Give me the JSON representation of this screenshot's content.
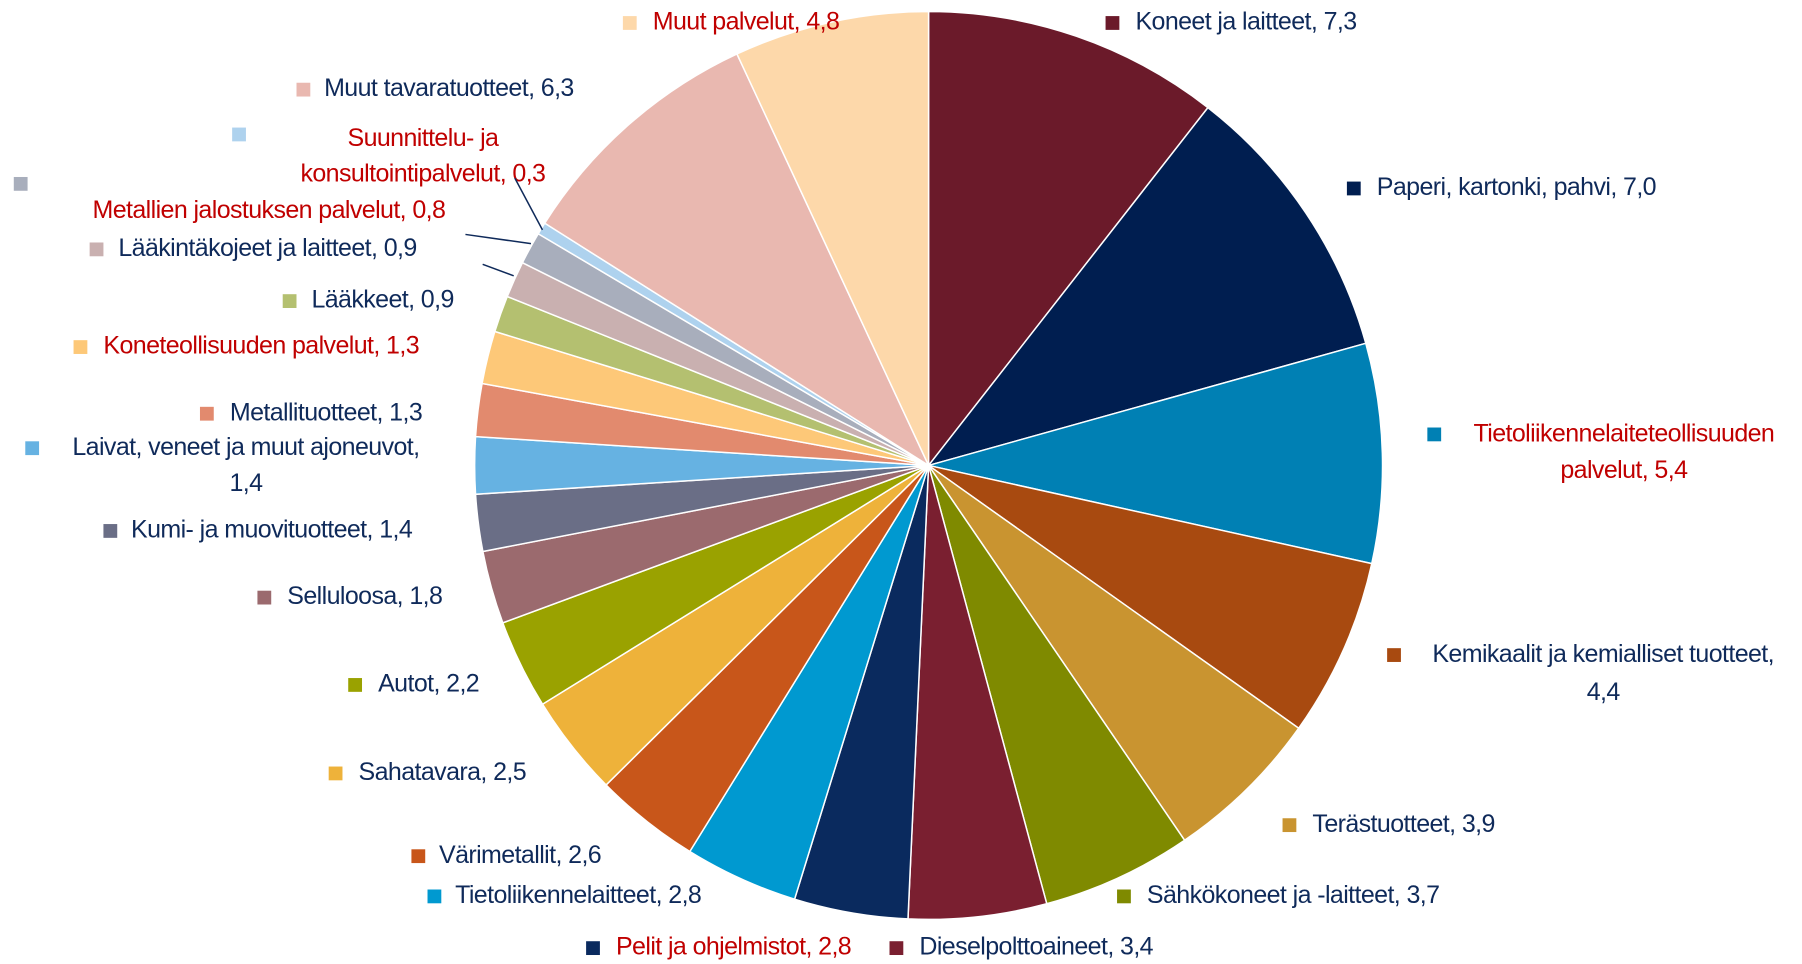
{
  "chart_data": {
    "type": "pie",
    "categories": [
      "Koneet ja laitteet, 7,3",
      "Paperi, kartonki, pahvi, 7,0",
      "Tietoliikennelaiteteollisuuden palvelut, 5,4",
      "Kemikaalit ja kemialliset tuotteet, 4,4",
      "Terästuotteet, 3,9",
      "Sähkökoneet ja -laitteet, 3,7",
      "Dieselpolttoaineet, 3,4",
      "Pelit ja ohjelmistot, 2,8",
      "Tietoliikennelaitteet, 2,8",
      "Värimetallit, 2,6",
      "Sahatavara, 2,5",
      "Autot, 2,2",
      "Selluloosa, 1,8",
      "Kumi- ja muovituotteet, 1,4",
      "Laivat, veneet ja muut ajoneuvot, 1,4",
      "Metallituotteet, 1,3",
      "Koneteollisuuden palvelut, 1,3",
      "Lääkkeet, 0,9",
      "Lääkintäkojeet ja laitteet, 0,9",
      "Metallien jalostuksen palvelut, 0,8",
      "Suunnittelu- ja konsultointipalvelut, 0,3",
      "Muut tavaratuotteet, 6,3",
      "Muut palvelut, 4,8"
    ],
    "values": [
      7.3,
      7.0,
      5.4,
      4.4,
      3.9,
      3.7,
      3.4,
      2.8,
      2.8,
      2.6,
      2.5,
      2.2,
      1.8,
      1.4,
      1.4,
      1.3,
      1.3,
      0.9,
      0.9,
      0.8,
      0.3,
      6.3,
      4.8
    ],
    "colors": [
      "#6b1a2a",
      "#001e50",
      "#0080b4",
      "#a84a10",
      "#c99430",
      "#7f8a00",
      "#7a1f30",
      "#0a2a5e",
      "#0099d0",
      "#c8561a",
      "#eeb23a",
      "#9aa200",
      "#9b6a6e",
      "#6a6e86",
      "#66b2e2",
      "#e28a6e",
      "#fdc878",
      "#b4c070",
      "#c9b0b0",
      "#a8aebc",
      "#aed2ee",
      "#e9b8b0",
      "#fdd8aa"
    ],
    "label_colors": [
      "#0f2a5a",
      "#0f2a5a",
      "#c00000",
      "#0f2a5a",
      "#0f2a5a",
      "#0f2a5a",
      "#0f2a5a",
      "#c00000",
      "#0f2a5a",
      "#0f2a5a",
      "#0f2a5a",
      "#0f2a5a",
      "#0f2a5a",
      "#0f2a5a",
      "#0f2a5a",
      "#0f2a5a",
      "#c00000",
      "#0f2a5a",
      "#0f2a5a",
      "#c00000",
      "#c00000",
      "#0f2a5a",
      "#c00000"
    ]
  }
}
